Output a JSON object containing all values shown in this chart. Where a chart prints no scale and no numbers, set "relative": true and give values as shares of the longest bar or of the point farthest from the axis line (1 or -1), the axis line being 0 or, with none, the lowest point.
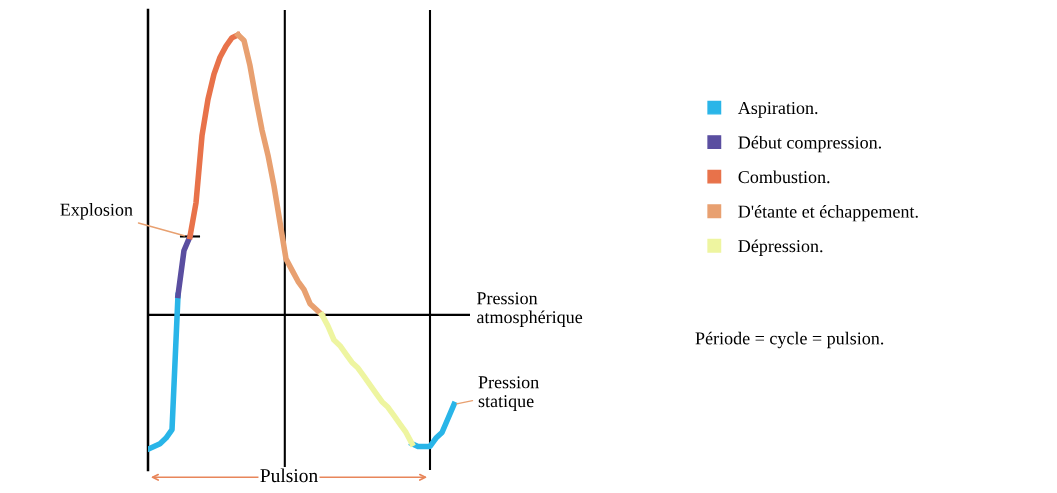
{
  "chart_data": {
    "type": "line",
    "relative": true,
    "categories": [
      null,
      null,
      null,
      null,
      null,
      null,
      null,
      null,
      null,
      null,
      null,
      null,
      null,
      null,
      null,
      null,
      null,
      null,
      null,
      null,
      null,
      null,
      null,
      null,
      null,
      null,
      null,
      null,
      null,
      null,
      null,
      null,
      null,
      null,
      null,
      null,
      null,
      null,
      null,
      null,
      null,
      null,
      null,
      null,
      null,
      null,
      null,
      null,
      null,
      null,
      null,
      null
    ],
    "series": [
      {
        "name": "Aspiration.",
        "color": "#29b5e8",
        "values": [
          -0.48,
          -0.47,
          -0.46,
          -0.44,
          -0.41,
          0.07,
          null,
          null,
          null,
          null,
          null,
          null,
          null,
          null,
          null,
          null,
          null,
          null,
          null,
          null,
          null,
          null,
          null,
          null,
          null,
          null,
          null,
          null,
          null,
          null,
          null,
          null,
          null,
          null,
          null,
          null,
          null,
          null,
          null,
          null,
          null,
          null,
          null,
          null,
          -0.46,
          -0.47,
          -0.47,
          -0.47,
          -0.44,
          -0.42,
          -0.37,
          -0.32
        ]
      },
      {
        "name": "Début compression.",
        "color": "#5a4ea0",
        "values": [
          null,
          null,
          null,
          null,
          null,
          0.07,
          0.23,
          0.28,
          null,
          null,
          null,
          null,
          null,
          null,
          null,
          null,
          null,
          null,
          null,
          null,
          null,
          null,
          null,
          null,
          null,
          null,
          null,
          null,
          null,
          null,
          null,
          null,
          null,
          null,
          null,
          null,
          null,
          null,
          null,
          null,
          null,
          null,
          null,
          null,
          null,
          null,
          null,
          null,
          null,
          null,
          null,
          null
        ]
      },
      {
        "name": "Combustion.",
        "color": "#e8724a",
        "values": [
          null,
          null,
          null,
          null,
          null,
          null,
          null,
          0.28,
          0.4,
          0.64,
          0.77,
          0.86,
          0.92,
          0.96,
          0.99,
          1,
          null,
          null,
          null,
          null,
          null,
          null,
          null,
          null,
          null,
          null,
          null,
          null,
          null,
          null,
          null,
          null,
          null,
          null,
          null,
          null,
          null,
          null,
          null,
          null,
          null,
          null,
          null,
          null,
          null,
          null,
          null,
          null,
          null,
          null,
          null,
          null
        ]
      },
      {
        "name": "D'étante et échappement.",
        "color": "#e8a070",
        "values": [
          null,
          null,
          null,
          null,
          null,
          null,
          null,
          null,
          null,
          null,
          null,
          null,
          null,
          null,
          null,
          1,
          0.98,
          0.89,
          0.77,
          0.66,
          0.57,
          0.46,
          0.33,
          0.2,
          0.16,
          0.12,
          0.09,
          0.04,
          0.02,
          0,
          null,
          null,
          null,
          null,
          null,
          null,
          null,
          null,
          null,
          null,
          null,
          null,
          null,
          null,
          null,
          null,
          null,
          null,
          null,
          null,
          null,
          null
        ]
      },
      {
        "name": "Dépression.",
        "color": "#eef5a0",
        "values": [
          null,
          null,
          null,
          null,
          null,
          null,
          null,
          null,
          null,
          null,
          null,
          null,
          null,
          null,
          null,
          null,
          null,
          null,
          null,
          null,
          null,
          null,
          null,
          null,
          null,
          null,
          null,
          null,
          null,
          0,
          -0.04,
          -0.09,
          -0.11,
          -0.14,
          -0.17,
          -0.19,
          -0.22,
          -0.25,
          -0.28,
          -0.31,
          -0.33,
          -0.36,
          -0.39,
          -0.42,
          -0.46,
          null,
          null,
          null,
          null,
          null,
          null,
          null
        ]
      }
    ],
    "ref_lines": [
      {
        "axis": "y",
        "value": 0,
        "label": "Pression\natmosphérique",
        "color": "#000000"
      }
    ],
    "annotations": [
      "Explosion",
      "Pression\nstatique",
      "Pulsion",
      "Période = cycle = pulsion."
    ],
    "legend": "right",
    "marker": "none",
    "line_style": "solid"
  }
}
